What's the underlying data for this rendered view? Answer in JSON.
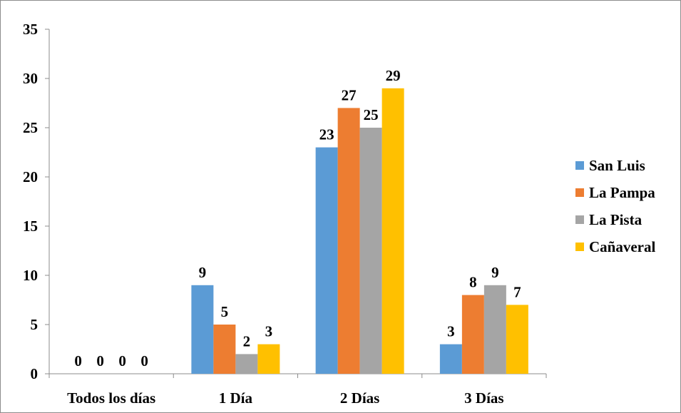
{
  "chart_data": {
    "type": "bar",
    "categories": [
      "Todos los días",
      "1 Día",
      "2 Días",
      "3 Días"
    ],
    "series": [
      {
        "name": "San Luis",
        "color": "#5b9bd5",
        "values": [
          0,
          9,
          23,
          3
        ]
      },
      {
        "name": "La Pampa",
        "color": "#ed7d31",
        "values": [
          0,
          5,
          27,
          8
        ]
      },
      {
        "name": "La Pista",
        "color": "#a5a5a5",
        "values": [
          0,
          2,
          25,
          9
        ]
      },
      {
        "name": "Cañaveral",
        "color": "#ffc000",
        "values": [
          0,
          3,
          29,
          7
        ]
      }
    ],
    "ylim": [
      0,
      35
    ],
    "yticks": [
      0,
      5,
      10,
      15,
      20,
      25,
      30,
      35
    ],
    "data_labels": true,
    "grid": false,
    "legend_position": "right"
  }
}
